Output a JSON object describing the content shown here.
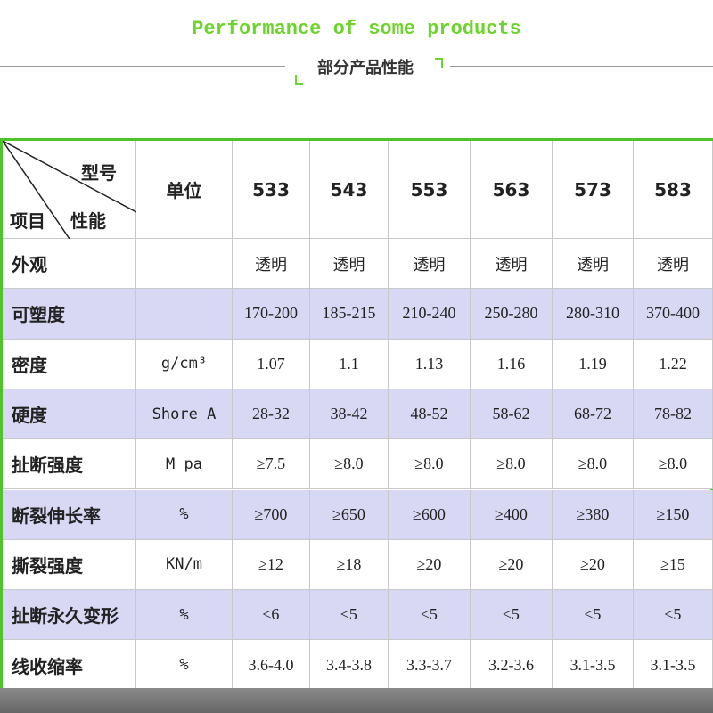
{
  "header": {
    "title": "Performance of some products",
    "subtitle": "部分产品性能"
  },
  "table": {
    "corner": {
      "model": "型号",
      "property": "性能",
      "item": "项目"
    },
    "unit": "单位",
    "models": [
      "533",
      "543",
      "553",
      "563",
      "573",
      "583"
    ],
    "rows": [
      [
        "外观",
        "",
        "透明",
        "透明",
        "透明",
        "透明",
        "透明",
        "透明"
      ],
      [
        "可塑度",
        "",
        "170-200",
        "185-215",
        "210-240",
        "250-280",
        "280-310",
        "370-400"
      ],
      [
        "密度",
        "g/cm³",
        "1.07",
        "1.1",
        "1.13",
        "1.16",
        "1.19",
        "1.22"
      ],
      [
        "硬度",
        "Shore A",
        "28-32",
        "38-42",
        "48-52",
        "58-62",
        "68-72",
        "78-82"
      ],
      [
        "扯断强度",
        "M pa",
        "≥7.5",
        "≥8.0",
        "≥8.0",
        "≥8.0",
        "≥8.0",
        "≥8.0"
      ],
      [
        "断裂伸长率",
        "%",
        "≥700",
        "≥650",
        "≥600",
        "≥400",
        "≥380",
        "≥150"
      ],
      [
        "撕裂强度",
        "KN/m",
        "≥12",
        "≥18",
        "≥20",
        "≥20",
        "≥20",
        "≥15"
      ],
      [
        "扯断永久变形",
        "%",
        "≤6",
        "≤5",
        "≤5",
        "≤5",
        "≤5",
        "≤5"
      ],
      [
        "线收缩率",
        "%",
        "3.6-4.0",
        "3.4-3.8",
        "3.3-3.7",
        "3.2-3.6",
        "3.1-3.5",
        "3.1-3.5"
      ]
    ]
  }
}
